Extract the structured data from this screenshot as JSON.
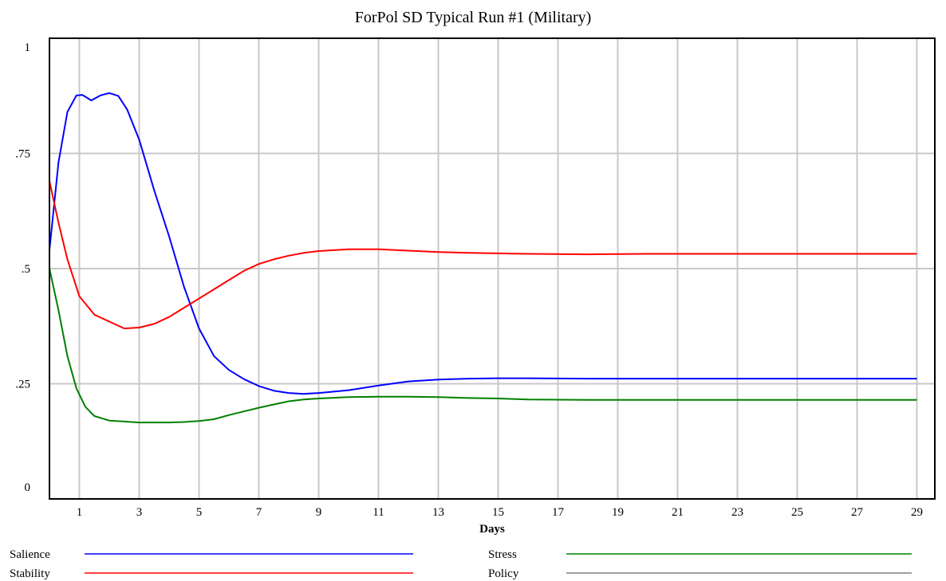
{
  "chart_data": {
    "type": "line",
    "title": "ForPol SD Typical Run #1 (Military)",
    "xlabel": "Days",
    "ylabel": "",
    "xlim": [
      0,
      29.6
    ],
    "ylim": [
      0,
      1
    ],
    "x_ticks": [
      1,
      3,
      5,
      7,
      9,
      11,
      13,
      15,
      17,
      19,
      21,
      23,
      25,
      27,
      29
    ],
    "x_tick_labels": [
      "1",
      "3",
      "5",
      "7",
      "9",
      "11",
      "13",
      "15",
      "17",
      "19",
      "21",
      "23",
      "25",
      "27",
      "29"
    ],
    "y_ticks": [
      1,
      0.75,
      0.5,
      0.25,
      0
    ],
    "y_tick_labels": [
      "1",
      ".75",
      ".5",
      ".25",
      "0"
    ],
    "grid": true,
    "legend_position": "bottom",
    "series": [
      {
        "name": "Salience",
        "color": "#0000ff",
        "points": [
          [
            0,
            0.54
          ],
          [
            0.3,
            0.73
          ],
          [
            0.6,
            0.84
          ],
          [
            0.9,
            0.876
          ],
          [
            1.1,
            0.877
          ],
          [
            1.4,
            0.865
          ],
          [
            1.7,
            0.876
          ],
          [
            2.0,
            0.881
          ],
          [
            2.3,
            0.875
          ],
          [
            2.6,
            0.845
          ],
          [
            3.0,
            0.78
          ],
          [
            3.5,
            0.67
          ],
          [
            4.0,
            0.57
          ],
          [
            4.5,
            0.46
          ],
          [
            5.0,
            0.37
          ],
          [
            5.5,
            0.31
          ],
          [
            6.0,
            0.28
          ],
          [
            6.5,
            0.26
          ],
          [
            7.0,
            0.245
          ],
          [
            7.5,
            0.235
          ],
          [
            8.0,
            0.23
          ],
          [
            8.5,
            0.228
          ],
          [
            9.0,
            0.23
          ],
          [
            10.0,
            0.236
          ],
          [
            11.0,
            0.246
          ],
          [
            12.0,
            0.255
          ],
          [
            13.0,
            0.259
          ],
          [
            14.0,
            0.261
          ],
          [
            15.0,
            0.262
          ],
          [
            16.0,
            0.262
          ],
          [
            18.0,
            0.261
          ],
          [
            29.0,
            0.261
          ]
        ]
      },
      {
        "name": "Stability",
        "color": "#ff0000",
        "points": [
          [
            0,
            0.69
          ],
          [
            0.3,
            0.6
          ],
          [
            0.6,
            0.52
          ],
          [
            1.0,
            0.44
          ],
          [
            1.5,
            0.4
          ],
          [
            2.0,
            0.385
          ],
          [
            2.5,
            0.37
          ],
          [
            3.0,
            0.372
          ],
          [
            3.5,
            0.38
          ],
          [
            4.0,
            0.395
          ],
          [
            4.5,
            0.415
          ],
          [
            5.0,
            0.435
          ],
          [
            5.5,
            0.455
          ],
          [
            6.0,
            0.475
          ],
          [
            6.5,
            0.495
          ],
          [
            7.0,
            0.51
          ],
          [
            7.5,
            0.52
          ],
          [
            8.0,
            0.528
          ],
          [
            8.5,
            0.534
          ],
          [
            9.0,
            0.538
          ],
          [
            10.0,
            0.542
          ],
          [
            11.0,
            0.542
          ],
          [
            12.0,
            0.539
          ],
          [
            13.0,
            0.536
          ],
          [
            14.0,
            0.534
          ],
          [
            15.0,
            0.533
          ],
          [
            16.0,
            0.532
          ],
          [
            18.0,
            0.531
          ],
          [
            20.0,
            0.532
          ],
          [
            29.0,
            0.532
          ]
        ]
      },
      {
        "name": "Stress",
        "color": "#008000",
        "points": [
          [
            0,
            0.5
          ],
          [
            0.3,
            0.41
          ],
          [
            0.6,
            0.31
          ],
          [
            0.9,
            0.24
          ],
          [
            1.2,
            0.2
          ],
          [
            1.5,
            0.18
          ],
          [
            2.0,
            0.17
          ],
          [
            2.5,
            0.168
          ],
          [
            3.0,
            0.166
          ],
          [
            3.5,
            0.166
          ],
          [
            4.0,
            0.166
          ],
          [
            4.5,
            0.167
          ],
          [
            5.0,
            0.169
          ],
          [
            5.5,
            0.173
          ],
          [
            6.0,
            0.182
          ],
          [
            6.5,
            0.19
          ],
          [
            7.0,
            0.198
          ],
          [
            7.5,
            0.205
          ],
          [
            8.0,
            0.212
          ],
          [
            8.5,
            0.216
          ],
          [
            9.0,
            0.218
          ],
          [
            10.0,
            0.221
          ],
          [
            11.0,
            0.222
          ],
          [
            12.0,
            0.222
          ],
          [
            13.0,
            0.221
          ],
          [
            14.0,
            0.219
          ],
          [
            15.0,
            0.218
          ],
          [
            16.0,
            0.216
          ],
          [
            18.0,
            0.215
          ],
          [
            29.0,
            0.215
          ]
        ]
      },
      {
        "name": "Policy",
        "color": "#808080",
        "points": []
      }
    ]
  }
}
